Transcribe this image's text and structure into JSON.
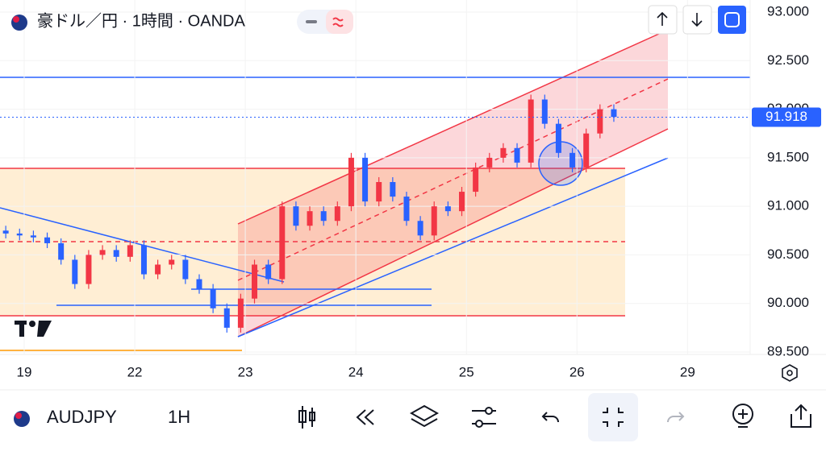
{
  "header": {
    "title": "豪ドル／円 · 1時間 · OANDA"
  },
  "chart_data": {
    "type": "candlestick",
    "x": [
      -4,
      -1,
      2,
      5,
      8,
      11,
      14,
      17,
      20,
      23,
      26,
      29,
      32,
      35,
      38,
      41,
      44,
      47,
      50,
      53,
      56,
      59,
      62,
      65,
      68,
      71,
      74,
      77,
      80,
      83,
      86,
      89,
      92,
      95,
      98,
      101,
      104,
      107,
      110,
      113,
      116,
      119,
      122,
      125,
      128
    ],
    "open": [
      90.75,
      90.72,
      90.7,
      90.68,
      90.62,
      90.45,
      90.2,
      90.5,
      90.55,
      90.48,
      90.6,
      90.3,
      90.4,
      90.45,
      90.25,
      90.15,
      89.95,
      89.75,
      90.05,
      90.4,
      90.25,
      91.0,
      90.8,
      90.95,
      90.85,
      91.0,
      91.5,
      91.05,
      91.25,
      91.1,
      90.85,
      90.7,
      91.0,
      90.95,
      91.15,
      91.4,
      91.5,
      91.6,
      91.45,
      92.1,
      91.85,
      91.55,
      91.4,
      91.75,
      92.0
    ],
    "high": [
      90.8,
      90.77,
      90.75,
      90.73,
      90.67,
      90.5,
      90.55,
      90.6,
      90.6,
      90.65,
      90.65,
      90.45,
      90.5,
      90.5,
      90.3,
      90.2,
      90.0,
      90.1,
      90.45,
      90.45,
      91.05,
      91.05,
      91.0,
      91.0,
      91.05,
      91.55,
      91.55,
      91.3,
      91.3,
      91.15,
      90.9,
      91.05,
      91.05,
      91.2,
      91.45,
      91.55,
      91.65,
      91.65,
      92.15,
      92.15,
      91.9,
      91.6,
      91.8,
      92.05,
      92.05
    ],
    "low": [
      90.67,
      90.65,
      90.63,
      90.57,
      90.4,
      90.15,
      90.15,
      90.45,
      90.43,
      90.43,
      90.25,
      90.25,
      90.35,
      90.2,
      90.1,
      89.9,
      89.7,
      89.7,
      90.0,
      90.2,
      90.2,
      90.75,
      90.75,
      90.8,
      90.8,
      90.95,
      91.0,
      91.0,
      91.05,
      90.8,
      90.65,
      90.65,
      90.9,
      90.9,
      91.1,
      91.35,
      91.45,
      91.4,
      91.4,
      91.8,
      91.5,
      91.35,
      91.35,
      91.7,
      91.87
    ],
    "close": [
      90.72,
      90.7,
      90.68,
      90.62,
      90.45,
      90.2,
      90.5,
      90.55,
      90.48,
      90.6,
      90.3,
      90.4,
      90.45,
      90.25,
      90.15,
      89.95,
      89.75,
      90.05,
      90.4,
      90.25,
      91.0,
      90.8,
      90.95,
      90.85,
      91.0,
      91.5,
      91.05,
      91.25,
      91.1,
      90.85,
      90.7,
      91.0,
      90.95,
      91.15,
      91.4,
      91.5,
      91.6,
      91.45,
      92.1,
      91.85,
      91.55,
      91.4,
      91.75,
      92.0,
      91.92
    ],
    "up_color": "#f23645",
    "down_color": "#2962ff",
    "xlim": [
      -5.25,
      157.6
    ],
    "xticks": [
      {
        "value": 0,
        "label": "19"
      },
      {
        "value": 24,
        "label": "22"
      },
      {
        "value": 48,
        "label": "23"
      },
      {
        "value": 72,
        "label": "24"
      },
      {
        "value": 96,
        "label": "25"
      },
      {
        "value": 120,
        "label": "26"
      },
      {
        "value": 144,
        "label": "29"
      }
    ],
    "ylim": [
      89.5,
      93.0
    ],
    "yticks": [
      {
        "value": 89.5,
        "label": "89.500"
      },
      {
        "value": 90,
        "label": "90.000"
      },
      {
        "value": 90.5,
        "label": "90.500"
      },
      {
        "value": 91,
        "label": "91.000"
      },
      {
        "value": 91.5,
        "label": "91.500"
      },
      {
        "value": 92,
        "label": "92.000"
      },
      {
        "value": 92.5,
        "label": "92.500"
      },
      {
        "value": 93,
        "label": "93.000"
      }
    ],
    "last_price": {
      "value": 91.918,
      "label": "91.918"
    }
  },
  "toolbar": {
    "symbol": "AUDJPY",
    "interval": "1H"
  }
}
